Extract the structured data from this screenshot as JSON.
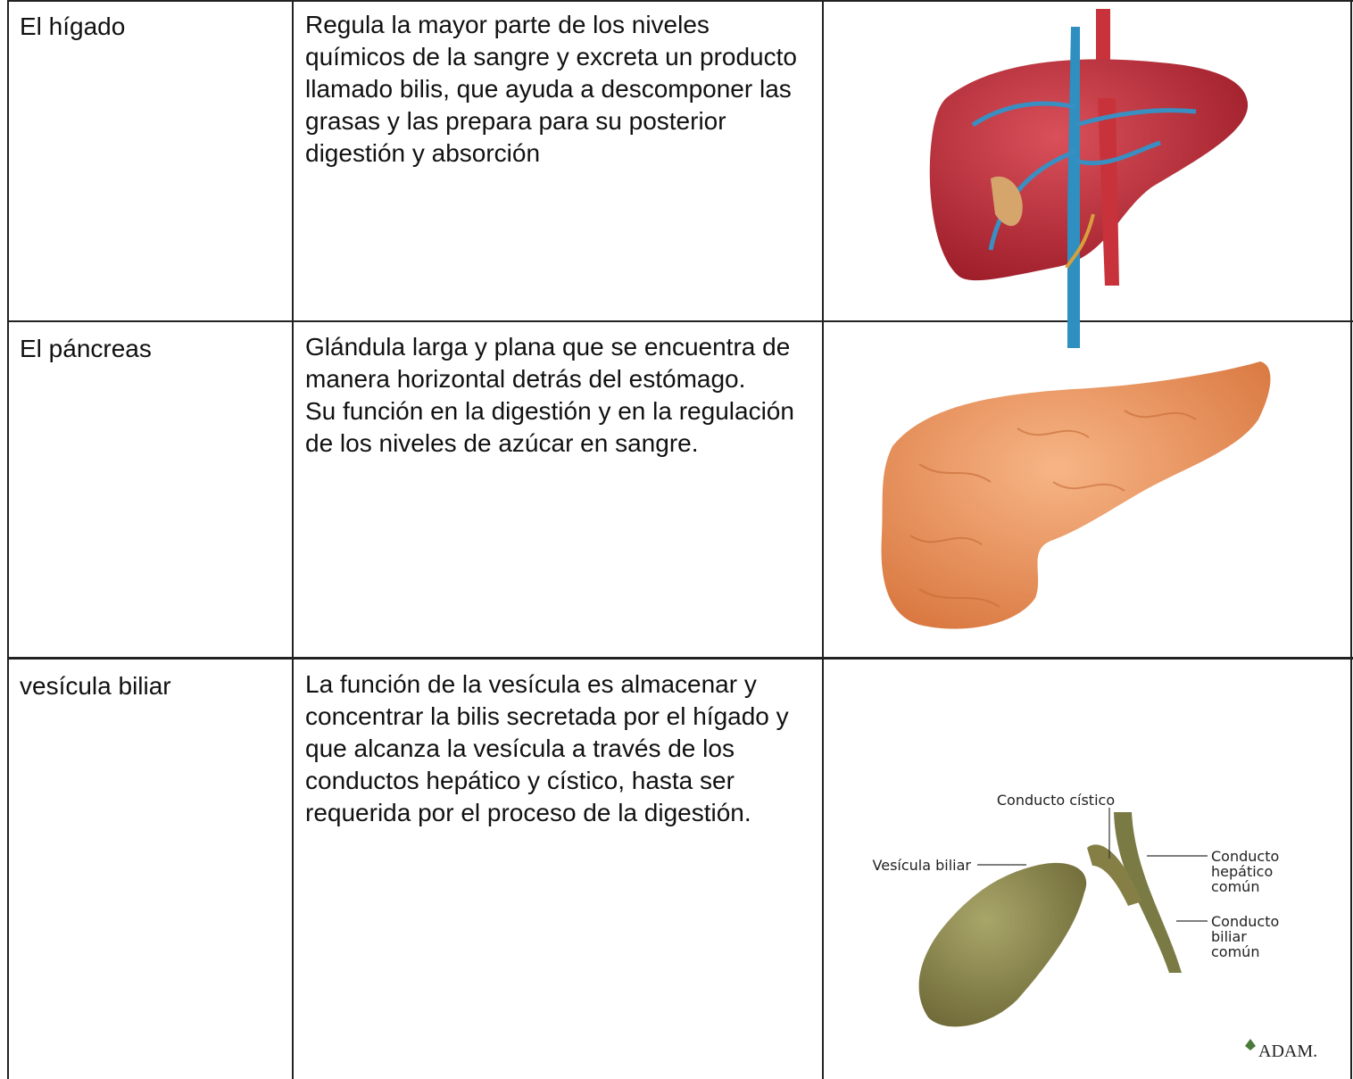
{
  "table": {
    "rows": [
      {
        "organ": "El hígado",
        "description": [
          "Regula la mayor parte de los niveles químicos de la sangre y excreta un producto llamado bilis, que ayuda a descomponer las grasas y las prepara para su posterior digestión y absorción"
        ]
      },
      {
        "organ": "El páncreas",
        "description": [
          "Glándula larga y plana que se encuentra de manera horizontal detrás del estómago.",
          "Su función en la digestión y en la regulación de los niveles de azúcar en sangre."
        ]
      },
      {
        "organ": "vesícula biliar",
        "description": [
          "La función de la vesícula es almacenar y concentrar la bilis secretada por el hígado y que alcanza la vesícula a través de los conductos hepático y cístico, hasta ser requerida por el proceso de la digestión."
        ]
      }
    ]
  },
  "figure": {
    "labels": {
      "cystic_duct": "Conducto cístico",
      "gallbladder": "Vesícula biliar",
      "hepatic_duct": [
        "Conducto",
        "hepático",
        "común"
      ],
      "bile_duct": [
        "Conducto",
        "biliar",
        "común"
      ],
      "credit": "ADAM."
    }
  }
}
